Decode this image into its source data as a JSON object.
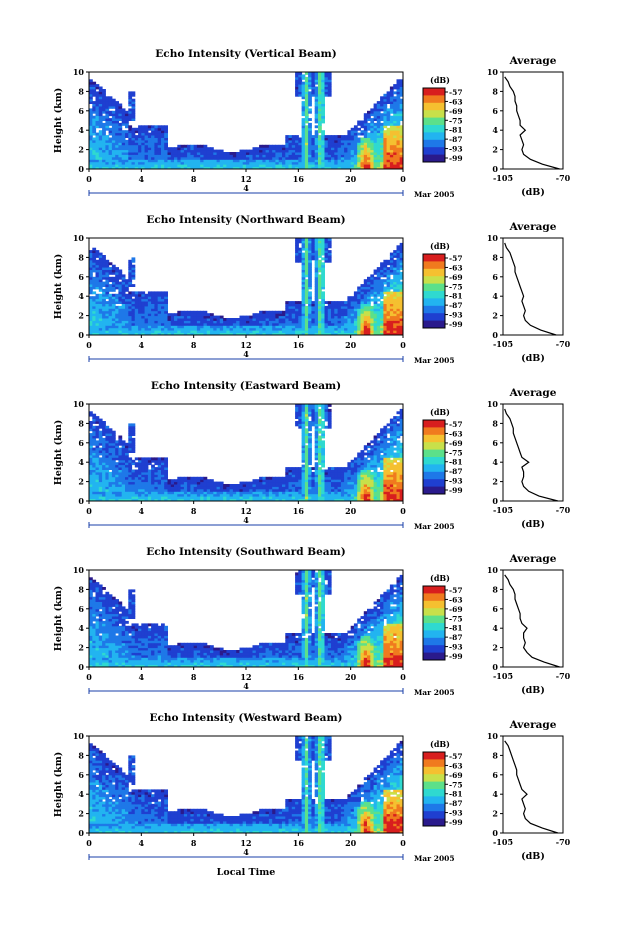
{
  "chart_data": [
    {
      "type": "heatmap",
      "title": "Echo Intensity (Vertical Beam)",
      "ylabel": "Height (km)",
      "xticks": [
        "0",
        "4",
        "8",
        "12",
        "16",
        "20",
        "0"
      ],
      "yticks": [
        "0",
        "2",
        "4",
        "6",
        "8",
        "10"
      ],
      "xlim": [
        0,
        24
      ],
      "ylim": [
        0,
        10
      ],
      "date_marker": "4",
      "date_label": "Mar 2005",
      "colorbar": {
        "unit": "(dB)",
        "ticks": [
          "-57",
          "-63",
          "-69",
          "-75",
          "-81",
          "-87",
          "-93",
          "-99"
        ]
      },
      "profile": {
        "title": "Average",
        "xlabel": "(dB)",
        "xticks": [
          "-105",
          "-70"
        ],
        "yticks": [
          "0",
          "2",
          "4",
          "6",
          "8",
          "10"
        ],
        "xlim": [
          -105,
          -70
        ],
        "heights": [
          0,
          0.5,
          1,
          1.5,
          2,
          2.5,
          3,
          3.5,
          4,
          4.5,
          5,
          5.5,
          6,
          6.5,
          7,
          7.5,
          8,
          8.5,
          9,
          9.5
        ],
        "values": [
          -72,
          -82,
          -89,
          -93,
          -94,
          -93,
          -94,
          -95,
          -92,
          -95,
          -95,
          -96,
          -97,
          -97,
          -98,
          -98,
          -99,
          -101,
          -102,
          -104
        ]
      }
    },
    {
      "type": "heatmap",
      "title": "Echo Intensity (Northward Beam)",
      "ylabel": "Height (km)",
      "xticks": [
        "0",
        "4",
        "8",
        "12",
        "16",
        "20",
        "0"
      ],
      "yticks": [
        "0",
        "2",
        "4",
        "6",
        "8",
        "10"
      ],
      "xlim": [
        0,
        24
      ],
      "ylim": [
        0,
        10
      ],
      "date_marker": "4",
      "date_label": "Mar 2005",
      "colorbar": {
        "unit": "(dB)",
        "ticks": [
          "-57",
          "-63",
          "-69",
          "-75",
          "-81",
          "-87",
          "-93",
          "-99"
        ]
      },
      "profile": {
        "title": "Average",
        "xlabel": "(dB)",
        "xticks": [
          "-105",
          "-70"
        ],
        "yticks": [
          "0",
          "2",
          "4",
          "6",
          "8",
          "10"
        ],
        "xlim": [
          -105,
          -70
        ],
        "heights": [
          0,
          0.5,
          1,
          1.5,
          2,
          2.5,
          3,
          3.5,
          4,
          4.5,
          5,
          5.5,
          6,
          6.5,
          7,
          7.5,
          8,
          8.5,
          9,
          9.5
        ],
        "values": [
          -74,
          -83,
          -89,
          -92,
          -93,
          -92,
          -93,
          -94,
          -93,
          -94,
          -95,
          -96,
          -97,
          -98,
          -98,
          -99,
          -100,
          -101,
          -103,
          -104
        ]
      }
    },
    {
      "type": "heatmap",
      "title": "Echo Intensity (Eastward Beam)",
      "ylabel": "Height (km)",
      "xticks": [
        "0",
        "4",
        "8",
        "12",
        "16",
        "20",
        "0"
      ],
      "yticks": [
        "0",
        "2",
        "4",
        "6",
        "8",
        "10"
      ],
      "xlim": [
        0,
        24
      ],
      "ylim": [
        0,
        10
      ],
      "date_marker": "4",
      "date_label": "Mar 2005",
      "colorbar": {
        "unit": "(dB)",
        "ticks": [
          "-57",
          "-63",
          "-69",
          "-75",
          "-81",
          "-87",
          "-93",
          "-99"
        ]
      },
      "profile": {
        "title": "Average",
        "xlabel": "(dB)",
        "xticks": [
          "-105",
          "-70"
        ],
        "yticks": [
          "0",
          "2",
          "4",
          "6",
          "8",
          "10"
        ],
        "xlim": [
          -105,
          -70
        ],
        "heights": [
          0,
          0.5,
          1,
          1.5,
          2,
          2.5,
          3,
          3.5,
          4,
          4.5,
          5,
          5.5,
          6,
          6.5,
          7,
          7.5,
          8,
          8.5,
          9,
          9.5
        ],
        "values": [
          -73,
          -84,
          -90,
          -93,
          -94,
          -93,
          -93,
          -94,
          -90,
          -94,
          -95,
          -96,
          -97,
          -98,
          -99,
          -99,
          -100,
          -101,
          -103,
          -104
        ]
      }
    },
    {
      "type": "heatmap",
      "title": "Echo Intensity (Southward Beam)",
      "ylabel": "Height (km)",
      "xticks": [
        "0",
        "4",
        "8",
        "12",
        "16",
        "20",
        "0"
      ],
      "yticks": [
        "0",
        "2",
        "4",
        "6",
        "8",
        "10"
      ],
      "xlim": [
        0,
        24
      ],
      "ylim": [
        0,
        10
      ],
      "date_marker": "4",
      "date_label": "Mar 2005",
      "colorbar": {
        "unit": "(dB)",
        "ticks": [
          "-57",
          "-63",
          "-69",
          "-75",
          "-81",
          "-87",
          "-93",
          "-99"
        ]
      },
      "profile": {
        "title": "Average",
        "xlabel": "(dB)",
        "xticks": [
          "-105",
          "-70"
        ],
        "yticks": [
          "0",
          "2",
          "4",
          "6",
          "8",
          "10"
        ],
        "xlim": [
          -105,
          -70
        ],
        "heights": [
          0,
          0.5,
          1,
          1.5,
          2,
          2.5,
          3,
          3.5,
          4,
          4.5,
          5,
          5.5,
          6,
          6.5,
          7,
          7.5,
          8,
          8.5,
          9,
          9.5
        ],
        "values": [
          -72,
          -81,
          -88,
          -91,
          -93,
          -92,
          -93,
          -93,
          -91,
          -94,
          -95,
          -95,
          -96,
          -97,
          -98,
          -98,
          -99,
          -101,
          -102,
          -104
        ]
      }
    },
    {
      "type": "heatmap",
      "title": "Echo Intensity (Westward Beam)",
      "ylabel": "Height (km)",
      "xlabel": "Local Time",
      "xticks": [
        "0",
        "4",
        "8",
        "12",
        "16",
        "20",
        "0"
      ],
      "yticks": [
        "0",
        "2",
        "4",
        "6",
        "8",
        "10"
      ],
      "xlim": [
        0,
        24
      ],
      "ylim": [
        0,
        10
      ],
      "date_marker": "4",
      "date_label": "Mar 2005",
      "colorbar": {
        "unit": "(dB)",
        "ticks": [
          "-57",
          "-63",
          "-69",
          "-75",
          "-81",
          "-87",
          "-93",
          "-99"
        ]
      },
      "profile": {
        "title": "Average",
        "xlabel": "(dB)",
        "xticks": [
          "-105",
          "-70"
        ],
        "yticks": [
          "0",
          "2",
          "4",
          "6",
          "8",
          "10"
        ],
        "xlim": [
          -105,
          -70
        ],
        "heights": [
          0,
          0.5,
          1,
          1.5,
          2,
          2.5,
          3,
          3.5,
          4,
          4.5,
          5,
          5.5,
          6,
          6.5,
          7,
          7.5,
          8,
          8.5,
          9,
          9.5
        ],
        "values": [
          -73,
          -82,
          -89,
          -92,
          -93,
          -92,
          -93,
          -94,
          -91,
          -94,
          -95,
          -96,
          -97,
          -97,
          -98,
          -99,
          -100,
          -101,
          -102,
          -104
        ]
      }
    }
  ],
  "colors": {
    "scale": [
      "#2a1a8c",
      "#1f3fd0",
      "#1e78e8",
      "#22b4f0",
      "#2fd9d0",
      "#5ce08a",
      "#c8e04a",
      "#f5c030",
      "#f07a1e",
      "#d81e1e"
    ],
    "axis": "#000000"
  }
}
